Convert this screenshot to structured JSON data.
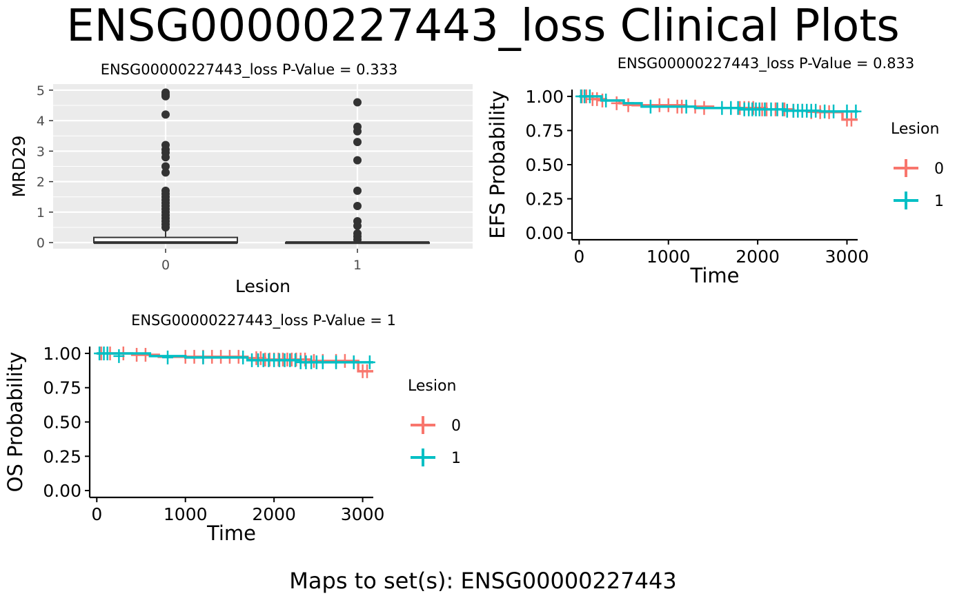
{
  "figure": {
    "title": "ENSG00000227443_loss Clinical Plots",
    "footer": "Maps to set(s): ENSG00000227443"
  },
  "colors": {
    "lesion0": "#F8766D",
    "lesion1": "#00BFC4",
    "panel_bg": "#EBEBEB",
    "grid": "#FFFFFF",
    "point": "#333333"
  },
  "chart_data": [
    {
      "type": "box",
      "title": "ENSG00000227443_loss  P-Value =  0.333",
      "xlabel": "Lesion",
      "ylabel": "MRD29",
      "categories": [
        "0",
        "1"
      ],
      "yticks": [
        "0",
        "1",
        "2",
        "3",
        "4",
        "5"
      ],
      "ylim": [
        -0.2,
        5.2
      ],
      "grid": true,
      "boxes": [
        {
          "category": "0",
          "q1": 0,
          "median": 0,
          "q3": 0.17,
          "whisker_low": 0,
          "whisker_high": 0.4,
          "outliers": [
            4.92,
            4.85,
            4.8,
            4.2,
            3.2,
            3.05,
            2.95,
            2.8,
            2.5,
            2.3,
            1.7,
            1.6,
            1.5,
            1.4,
            1.3,
            1.2,
            1.1,
            1.0,
            0.9,
            0.8,
            0.7,
            0.6,
            0.5
          ]
        },
        {
          "category": "1",
          "q1": 0,
          "median": 0,
          "q3": 0,
          "whisker_low": 0,
          "whisker_high": 0,
          "outliers": [
            4.6,
            3.8,
            3.65,
            3.3,
            2.7,
            1.7,
            1.2,
            0.7,
            0.55,
            0.3,
            0.2,
            0.1
          ]
        }
      ]
    },
    {
      "type": "line",
      "subtype": "kaplan-meier",
      "title": "ENSG00000227443_loss  P-Value =  0.833",
      "xlabel": "Time",
      "ylabel": "EFS Probability",
      "xticks": [
        "0",
        "1000",
        "2000",
        "3000"
      ],
      "yticks": [
        "0.00",
        "0.25",
        "0.50",
        "0.75",
        "1.00"
      ],
      "xlim": [
        -80,
        3120
      ],
      "ylim": [
        -0.05,
        1.05
      ],
      "legend": {
        "title": "Lesion",
        "position": "right",
        "labels": [
          "0",
          "1"
        ]
      },
      "series": [
        {
          "name": "0",
          "x": [
            0,
            150,
            300,
            450,
            600,
            1200,
            1500,
            2100,
            2400,
            2650,
            2950,
            3120
          ],
          "y": [
            1.0,
            0.98,
            0.97,
            0.95,
            0.935,
            0.925,
            0.915,
            0.905,
            0.895,
            0.885,
            0.83,
            0.83
          ],
          "censor_x": [
            30,
            80,
            150,
            200,
            260,
            420,
            550,
            900,
            1000,
            1100,
            1150,
            1300,
            1400,
            1800,
            1850,
            1900,
            1950,
            2050,
            2100,
            2200,
            2300,
            2400,
            2500,
            2600,
            2700,
            2800,
            3000,
            3050
          ],
          "censor_y": [
            1.0,
            1.0,
            0.98,
            0.98,
            0.97,
            0.95,
            0.935,
            0.935,
            0.935,
            0.925,
            0.925,
            0.925,
            0.915,
            0.915,
            0.915,
            0.915,
            0.915,
            0.905,
            0.905,
            0.905,
            0.905,
            0.895,
            0.895,
            0.885,
            0.885,
            0.885,
            0.83,
            0.83
          ]
        },
        {
          "name": "1",
          "x": [
            0,
            250,
            500,
            700,
            1300,
            1800,
            2300,
            2700,
            3120
          ],
          "y": [
            1.0,
            0.97,
            0.95,
            0.925,
            0.915,
            0.905,
            0.895,
            0.89,
            0.89
          ],
          "censor_x": [
            20,
            60,
            120,
            300,
            800,
            1200,
            1600,
            1700,
            1780,
            1850,
            1900,
            1940,
            1980,
            2020,
            2080,
            2150,
            2220,
            2280,
            2330,
            2400,
            2450,
            2500,
            2550,
            2600,
            2650,
            2750,
            2850,
            3000,
            3100
          ],
          "censor_y": [
            1.0,
            1.0,
            1.0,
            0.97,
            0.925,
            0.925,
            0.915,
            0.915,
            0.915,
            0.905,
            0.905,
            0.905,
            0.905,
            0.905,
            0.905,
            0.905,
            0.905,
            0.905,
            0.895,
            0.895,
            0.895,
            0.895,
            0.895,
            0.895,
            0.895,
            0.89,
            0.89,
            0.89,
            0.89
          ]
        }
      ]
    },
    {
      "type": "line",
      "subtype": "kaplan-meier",
      "title": "ENSG00000227443_loss  P-Value =  1",
      "xlabel": "Time",
      "ylabel": "OS Probability",
      "xticks": [
        "0",
        "1000",
        "2000",
        "3000"
      ],
      "yticks": [
        "0.00",
        "0.25",
        "0.50",
        "0.75",
        "1.00"
      ],
      "xlim": [
        -80,
        3120
      ],
      "ylim": [
        -0.05,
        1.05
      ],
      "legend": {
        "title": "Lesion",
        "position": "right",
        "labels": [
          "0",
          "1"
        ]
      },
      "series": [
        {
          "name": "0",
          "x": [
            0,
            400,
            700,
            1700,
            1900,
            2400,
            2950,
            3120
          ],
          "y": [
            1.0,
            0.99,
            0.975,
            0.965,
            0.955,
            0.945,
            0.87,
            0.87
          ],
          "censor_x": [
            50,
            150,
            300,
            450,
            550,
            1000,
            1100,
            1200,
            1300,
            1400,
            1500,
            1600,
            1800,
            1850,
            1900,
            1950,
            2000,
            2050,
            2100,
            2150,
            2200,
            2250,
            2300,
            2350,
            2450,
            2550,
            2700,
            2800,
            3000,
            3050
          ],
          "censor_y": [
            1.0,
            1.0,
            1.0,
            0.99,
            0.99,
            0.975,
            0.975,
            0.975,
            0.975,
            0.975,
            0.975,
            0.975,
            0.965,
            0.965,
            0.955,
            0.955,
            0.955,
            0.955,
            0.955,
            0.955,
            0.955,
            0.955,
            0.955,
            0.955,
            0.945,
            0.945,
            0.945,
            0.945,
            0.87,
            0.87
          ]
        },
        {
          "name": "1",
          "x": [
            0,
            600,
            1000,
            1700,
            2300,
            3120
          ],
          "y": [
            1.0,
            0.98,
            0.97,
            0.95,
            0.935,
            0.935
          ],
          "censor_x": [
            30,
            80,
            120,
            250,
            800,
            1200,
            1650,
            1750,
            1820,
            1880,
            1940,
            2000,
            2060,
            2120,
            2180,
            2240,
            2300,
            2360,
            2420,
            2480,
            2550,
            2700,
            2900,
            3080
          ],
          "censor_y": [
            1.0,
            1.0,
            1.0,
            0.98,
            0.97,
            0.97,
            0.97,
            0.95,
            0.95,
            0.95,
            0.95,
            0.95,
            0.95,
            0.95,
            0.95,
            0.95,
            0.935,
            0.935,
            0.935,
            0.935,
            0.935,
            0.935,
            0.935,
            0.935
          ]
        }
      ]
    }
  ]
}
